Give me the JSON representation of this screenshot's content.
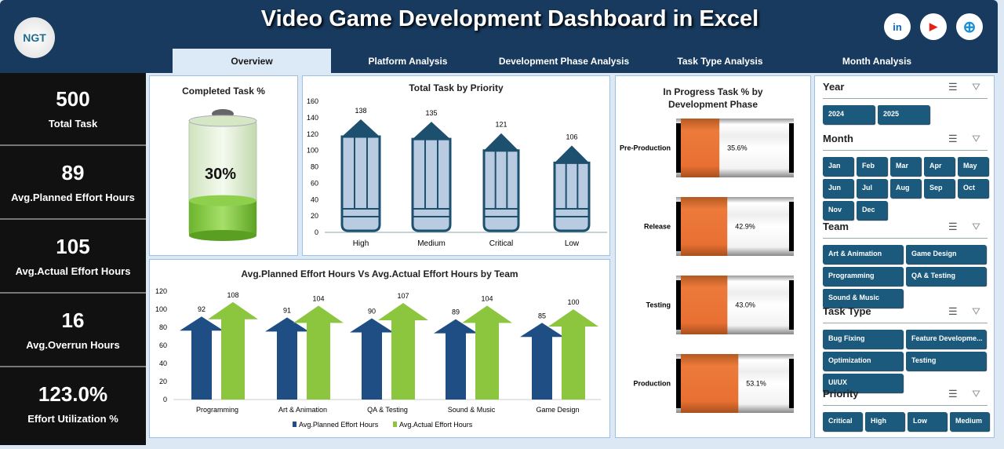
{
  "header": {
    "title": "Video Game Development Dashboard in Excel",
    "logo_text": "NGT",
    "social": [
      {
        "name": "linkedin-icon",
        "label": "in",
        "color": "#0a66c2"
      },
      {
        "name": "youtube-icon",
        "label": "▶",
        "color": "#e62117"
      },
      {
        "name": "globe-icon",
        "label": "⊕",
        "color": "#1a8fd6"
      }
    ]
  },
  "tabs": [
    {
      "label": "Overview",
      "active": true
    },
    {
      "label": "Platform Analysis"
    },
    {
      "label": "Development Phase Analysis"
    },
    {
      "label": "Task Type Analysis"
    },
    {
      "label": "Month Analysis"
    }
  ],
  "kpis": [
    {
      "value": "500",
      "label": "Total Task"
    },
    {
      "value": "89",
      "label": "Avg.Planned Effort Hours"
    },
    {
      "value": "105",
      "label": "Avg.Actual Effort Hours"
    },
    {
      "value": "16",
      "label": "Avg.Overrun Hours"
    },
    {
      "value": "123.0%",
      "label": "Effort Utilization %"
    }
  ],
  "completed": {
    "title": "Completed Task %",
    "value_label": "30%",
    "value": 0.3
  },
  "chart_data": [
    {
      "type": "bar",
      "title": "Total Task by Priority",
      "categories": [
        "High",
        "Medium",
        "Critical",
        "Low"
      ],
      "values": [
        138,
        135,
        121,
        106
      ],
      "ylim": [
        0,
        160
      ],
      "yticks": [
        0,
        20,
        40,
        60,
        80,
        100,
        120,
        140,
        160
      ]
    },
    {
      "type": "bar",
      "title": "Avg.Planned Effort Hours Vs Avg.Actual Effort Hours by Team",
      "categories": [
        "Programming",
        "Art & Animation",
        "QA & Testing",
        "Sound & Music",
        "Game Design"
      ],
      "series": [
        {
          "name": "Avg.Planned Effort Hours",
          "values": [
            92,
            91,
            90,
            89,
            85
          ],
          "color": "#1f4e85"
        },
        {
          "name": "Avg.Actual Effort Hours",
          "values": [
            108,
            104,
            107,
            104,
            100
          ],
          "color": "#8cc63f"
        }
      ],
      "ylim": [
        0,
        120
      ],
      "yticks": [
        0,
        20,
        40,
        60,
        80,
        100,
        120
      ],
      "legend": "bottom"
    },
    {
      "type": "bar",
      "title": "In Progress Task % by Development Phase",
      "categories": [
        "Pre-Production",
        "Release",
        "Testing",
        "Production"
      ],
      "values": [
        35.6,
        42.9,
        43.0,
        53.1
      ],
      "labels": [
        "35.6%",
        "42.9%",
        "43.0%",
        "53.1%"
      ],
      "ylim": [
        0,
        100
      ]
    }
  ],
  "slicers": [
    {
      "title": "Year",
      "items": [
        "2024",
        "2025"
      ]
    },
    {
      "title": "Month",
      "items": [
        "Jan",
        "Feb",
        "Mar",
        "Apr",
        "May",
        "Jun",
        "Jul",
        "Aug",
        "Sep",
        "Oct",
        "Nov",
        "Dec"
      ]
    },
    {
      "title": "Team",
      "items": [
        "Art & Animation",
        "Game Design",
        "Programming",
        "QA & Testing",
        "Sound & Music"
      ]
    },
    {
      "title": "Task Type",
      "items": [
        "Bug Fixing",
        "Feature Developme...",
        "Optimization",
        "Testing",
        "UI/UX"
      ]
    },
    {
      "title": "Priority",
      "items": [
        "Critical",
        "High",
        "Low",
        "Medium"
      ]
    }
  ]
}
